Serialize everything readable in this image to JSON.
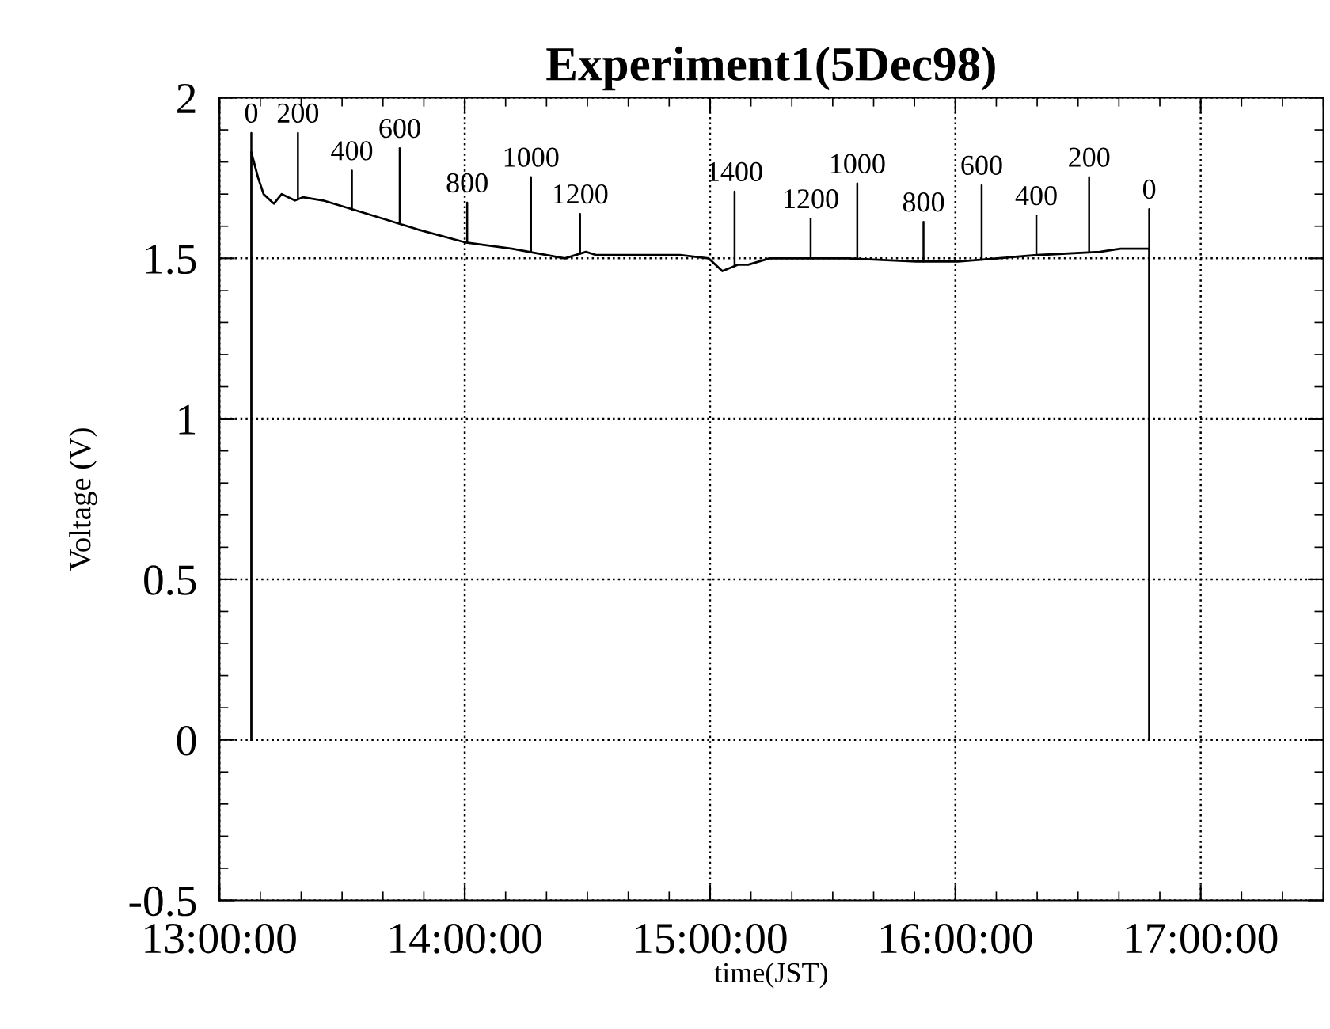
{
  "chart_data": {
    "type": "line",
    "title": "Experiment1(5Dec98)",
    "xlabel": "time(JST)",
    "ylabel": "Voltage (V)",
    "x": [
      13.13,
      13.13,
      13.158,
      13.18,
      13.222,
      13.254,
      13.308,
      13.34,
      13.423,
      13.596,
      13.808,
      14.0,
      14.192,
      14.408,
      14.494,
      14.537,
      14.878,
      14.994,
      15.05,
      15.113,
      15.156,
      15.242,
      15.562,
      15.84,
      16.011,
      16.331,
      16.588,
      16.673,
      16.79,
      16.79
    ],
    "series": [
      {
        "color": "#000000",
        "values": [
          0,
          1.83,
          1.75,
          1.7,
          1.67,
          1.7,
          1.68,
          1.69,
          1.68,
          1.64,
          1.59,
          1.55,
          1.53,
          1.5,
          1.52,
          1.51,
          1.51,
          1.5,
          1.46,
          1.48,
          1.48,
          1.5,
          1.5,
          1.49,
          1.49,
          1.51,
          1.52,
          1.53,
          1.53,
          0
        ]
      }
    ],
    "xlim": [
      13,
      17.5
    ],
    "ylim": [
      -0.5,
      2
    ],
    "xticks": [
      {
        "value": 13,
        "label": "13:00:00"
      },
      {
        "value": 14,
        "label": "14:00:00"
      },
      {
        "value": 15,
        "label": "15:00:00"
      },
      {
        "value": 16,
        "label": "16:00:00"
      },
      {
        "value": 17,
        "label": "17:00:00"
      }
    ],
    "yticks": [
      -0.5,
      0,
      0.5,
      1,
      1.5,
      2
    ],
    "grid": true,
    "line_style": "solid",
    "marker": "none",
    "annotations": [
      {
        "text": "0",
        "x": 13.13,
        "y": 1.83
      },
      {
        "text": "200",
        "x": 13.32,
        "y": 1.685
      },
      {
        "text": "400",
        "x": 13.54,
        "y": 1.65
      },
      {
        "text": "600",
        "x": 13.735,
        "y": 1.61
      },
      {
        "text": "800",
        "x": 14.01,
        "y": 1.55
      },
      {
        "text": "1000",
        "x": 14.27,
        "y": 1.52
      },
      {
        "text": "1200",
        "x": 14.47,
        "y": 1.515
      },
      {
        "text": "1400",
        "x": 15.1,
        "y": 1.475
      },
      {
        "text": "1200",
        "x": 15.41,
        "y": 1.5
      },
      {
        "text": "1000",
        "x": 15.6,
        "y": 1.5
      },
      {
        "text": "800",
        "x": 15.87,
        "y": 1.49
      },
      {
        "text": "600",
        "x": 16.107,
        "y": 1.495
      },
      {
        "text": "400",
        "x": 16.33,
        "y": 1.51
      },
      {
        "text": "200",
        "x": 16.545,
        "y": 1.52
      },
      {
        "text": "0",
        "x": 16.79,
        "y": 1.53
      }
    ]
  }
}
